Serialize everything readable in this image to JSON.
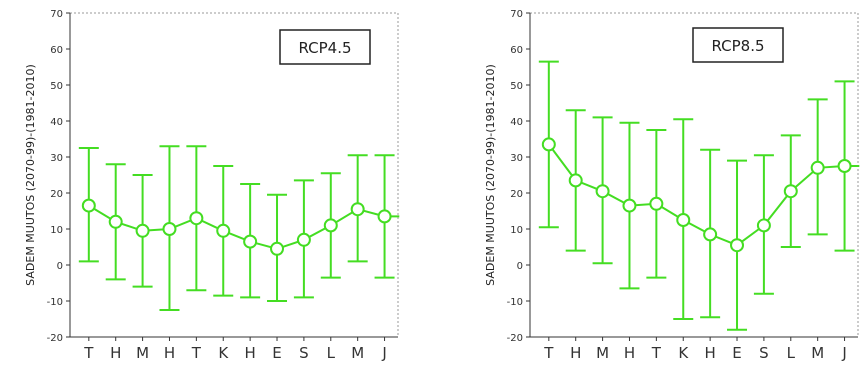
{
  "chart_data": [
    {
      "type": "line",
      "legend_label": "RCP4.5",
      "legend_position": "top-right",
      "ylabel": "SADEM MUUTOS (2070-99)-(1981-2010)",
      "ylim": [
        -20,
        70
      ],
      "yticks": [
        -20,
        -10,
        0,
        10,
        20,
        30,
        40,
        50,
        60,
        70
      ],
      "categories": [
        "T",
        "H",
        "M",
        "H",
        "T",
        "K",
        "H",
        "E",
        "S",
        "L",
        "M",
        "J"
      ],
      "color": "#44dd22",
      "grid": false,
      "series": [
        {
          "values": [
            16.5,
            12,
            9.5,
            10,
            13,
            9.5,
            6.5,
            4.5,
            7,
            11,
            15.5,
            13.5
          ],
          "upper": [
            32.5,
            28,
            25,
            33,
            33,
            27.5,
            22.5,
            19.5,
            23.5,
            25.5,
            30.5,
            30.5
          ],
          "lower": [
            1,
            -4,
            -6,
            -12.5,
            -7,
            -8.5,
            -9,
            -10,
            -9,
            -3.5,
            1,
            -3.5
          ]
        }
      ]
    },
    {
      "type": "line",
      "legend_label": "RCP8.5",
      "legend_position": "top-right",
      "ylabel": "SADEM MUUTOS (2070-99)-(1981-2010)",
      "ylim": [
        -20,
        70
      ],
      "yticks": [
        -20,
        -10,
        0,
        10,
        20,
        30,
        40,
        50,
        60,
        70
      ],
      "categories": [
        "T",
        "H",
        "M",
        "H",
        "T",
        "K",
        "H",
        "E",
        "S",
        "L",
        "M",
        "J"
      ],
      "color": "#44dd22",
      "grid": false,
      "series": [
        {
          "values": [
            33.5,
            23.5,
            20.5,
            16.5,
            17,
            12.5,
            8.5,
            5.5,
            11,
            20.5,
            27,
            27.5
          ],
          "upper": [
            56.5,
            43,
            41,
            39.5,
            37.5,
            40.5,
            32,
            29,
            30.5,
            36,
            46,
            51
          ],
          "lower": [
            10.5,
            4,
            0.5,
            -6.5,
            -3.5,
            -15,
            -14.5,
            -18,
            -8,
            5,
            8.5,
            4
          ]
        }
      ]
    }
  ]
}
